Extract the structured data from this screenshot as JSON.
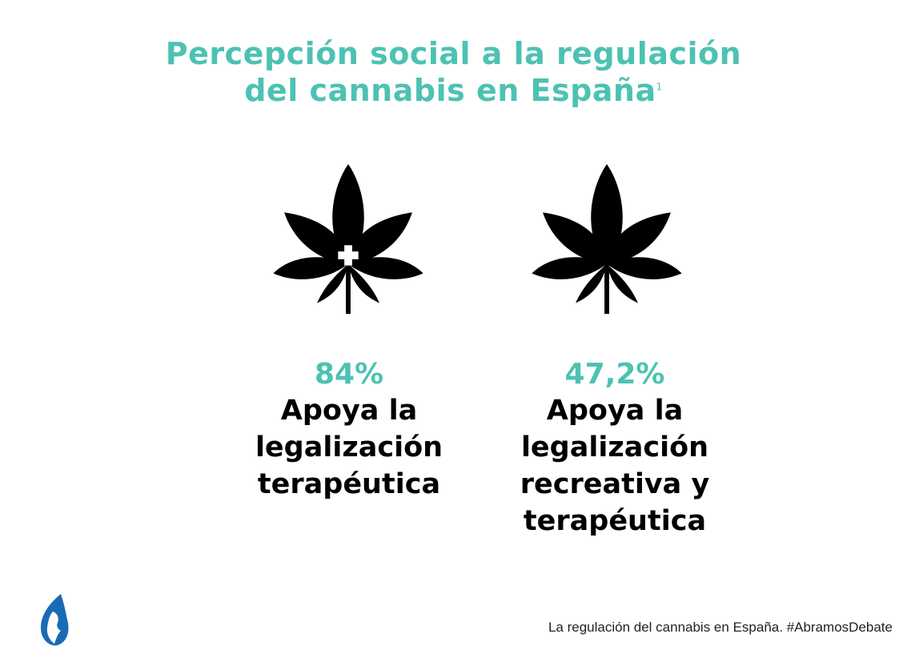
{
  "title": {
    "line1": "Percepción social a la regulación",
    "line2": "del cannabis en España",
    "footnote_mark": "1"
  },
  "stats": [
    {
      "percent": "84%",
      "description": "Apoya la\nlegalización\nterapéutica",
      "icon": "cannabis-leaf-with-medical-cross-icon"
    },
    {
      "percent": "47,2%",
      "description": "Apoya la\nlegalización\nrecreativa y\nterapéutica",
      "icon": "cannabis-leaf-icon"
    }
  ],
  "footer": {
    "text": "La regulación del cannabis en España.",
    "hashtag": "#AbramosDebate"
  },
  "colors": {
    "accent": "#4cc2b3",
    "text": "#000000",
    "logo": "#1a6bb5"
  }
}
